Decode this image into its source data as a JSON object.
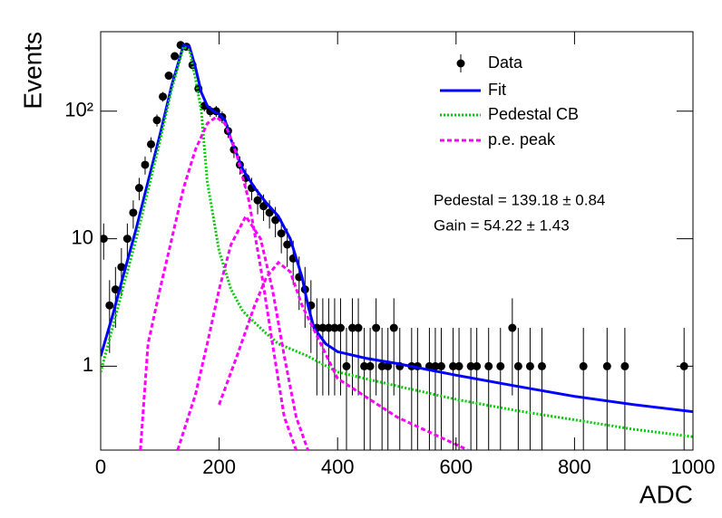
{
  "chart_data": {
    "type": "scatter",
    "xlabel": "ADC",
    "ylabel": "Events",
    "xlim": [
      0,
      1000
    ],
    "ylim": [
      0.22,
      420
    ],
    "log_y": true,
    "xticks": [
      0,
      200,
      400,
      600,
      800,
      1000
    ],
    "yticks": [
      1,
      10,
      {
        "value": 100,
        "label": "10²"
      }
    ],
    "legend": "upper right",
    "annotations": [
      "Pedestal = 139.18 ± 0.84",
      "Gain = 54.22 ± 1.43"
    ],
    "series": [
      {
        "name": "Data",
        "color": "#000000",
        "style": "markers",
        "x": [
          5,
          15,
          25,
          35,
          45,
          55,
          65,
          75,
          85,
          95,
          105,
          115,
          125,
          135,
          145,
          155,
          165,
          175,
          185,
          195,
          205,
          215,
          225,
          235,
          245,
          255,
          265,
          275,
          285,
          295,
          305,
          315,
          325,
          335,
          345,
          355,
          365,
          375,
          385,
          395,
          405,
          415,
          425,
          435,
          445,
          455,
          465,
          475,
          485,
          495,
          505,
          525,
          535,
          555,
          565,
          575,
          595,
          605,
          625,
          635,
          655,
          675,
          695,
          705,
          725,
          745,
          815,
          855,
          885,
          985
        ],
        "values": [
          10,
          3,
          4,
          6,
          10,
          16,
          25,
          38,
          55,
          85,
          130,
          190,
          270,
          330,
          320,
          230,
          150,
          110,
          100,
          100,
          90,
          70,
          50,
          38,
          30,
          25,
          20,
          18,
          16,
          14,
          11,
          9,
          7,
          5,
          4,
          3,
          2,
          2,
          2,
          2,
          2,
          1,
          2,
          2,
          1,
          1,
          2,
          1,
          1,
          2,
          1,
          1,
          1,
          1,
          1,
          1,
          1,
          1,
          1,
          1,
          1,
          1,
          2,
          1,
          1,
          1,
          1,
          1,
          1,
          1
        ],
        "errors": [
          3.16,
          1.73,
          2,
          2.45,
          3.16,
          4,
          5,
          6.16,
          7.42,
          9.22,
          11.4,
          13.78,
          16.43,
          18.17,
          17.89,
          15.17,
          12.25,
          10.49,
          10,
          10,
          9.49,
          8.37,
          7.07,
          6.16,
          5.48,
          5,
          4.47,
          4.24,
          4,
          3.74,
          3.32,
          3,
          2.65,
          2.24,
          2,
          1.73,
          1.41,
          1.41,
          1.41,
          1.41,
          1.41,
          1,
          1.41,
          1.41,
          1,
          1,
          1.41,
          1,
          1,
          1.41,
          1,
          1,
          1,
          1,
          1,
          1,
          1,
          1,
          1,
          1,
          1,
          1,
          1.41,
          1,
          1,
          1,
          1,
          1,
          1,
          1
        ]
      },
      {
        "name": "Fit",
        "color": "#0000ff",
        "style": "solid",
        "x": [
          0,
          20,
          40,
          60,
          80,
          100,
          120,
          140,
          150,
          160,
          170,
          180,
          190,
          200,
          210,
          220,
          240,
          260,
          280,
          300,
          320,
          340,
          350,
          360,
          380,
          400,
          450,
          500,
          600,
          700,
          800,
          900,
          1000
        ],
        "values": [
          1.2,
          2.5,
          5.5,
          12,
          28,
          65,
          160,
          330,
          320,
          220,
          140,
          110,
          100,
          95,
          85,
          60,
          35,
          25,
          19,
          15,
          10,
          5,
          3,
          2,
          1.5,
          1.3,
          1.15,
          1.05,
          0.85,
          0.7,
          0.58,
          0.5,
          0.44
        ]
      },
      {
        "name": "Pedestal CB",
        "color": "#00cc00",
        "style": "dotted",
        "x": [
          0,
          20,
          40,
          60,
          80,
          100,
          120,
          140,
          150,
          160,
          170,
          180,
          200,
          220,
          240,
          260,
          280,
          300,
          350,
          400,
          500,
          600,
          700,
          800,
          900,
          1000
        ],
        "values": [
          0.9,
          2,
          4.5,
          10,
          24,
          58,
          150,
          320,
          300,
          180,
          100,
          28,
          8,
          4,
          2.7,
          2.2,
          1.8,
          1.5,
          1.2,
          0.9,
          0.7,
          0.55,
          0.45,
          0.38,
          0.32,
          0.28
        ]
      },
      {
        "name": "p.e. peak",
        "color": "#ff00ff",
        "style": "dashed",
        "curves": [
          {
            "x": [
              67,
              80,
              100,
              120,
              140,
              160,
              180,
              195,
              210,
              230,
              250,
              270,
              290,
              310,
              330
            ],
            "values": [
              0.22,
              1.5,
              4,
              10,
              25,
              50,
              80,
              90,
              80,
              45,
              20,
              6,
              1.5,
              0.4,
              0.22
            ]
          },
          {
            "x": [
              130,
              160,
              180,
              200,
              220,
              245,
              270,
              290,
              310,
              330,
              350
            ],
            "values": [
              0.22,
              0.6,
              1.5,
              4,
              9,
              15,
              10,
              4,
              1.2,
              0.4,
              0.22
            ]
          },
          {
            "x": [
              200,
              230,
              260,
              280,
              300,
              320,
              340,
              400,
              500,
              620
            ],
            "values": [
              0.5,
              1.2,
              3,
              5,
              6.5,
              5.5,
              3,
              0.8,
              0.4,
              0.22
            ]
          }
        ]
      }
    ]
  }
}
